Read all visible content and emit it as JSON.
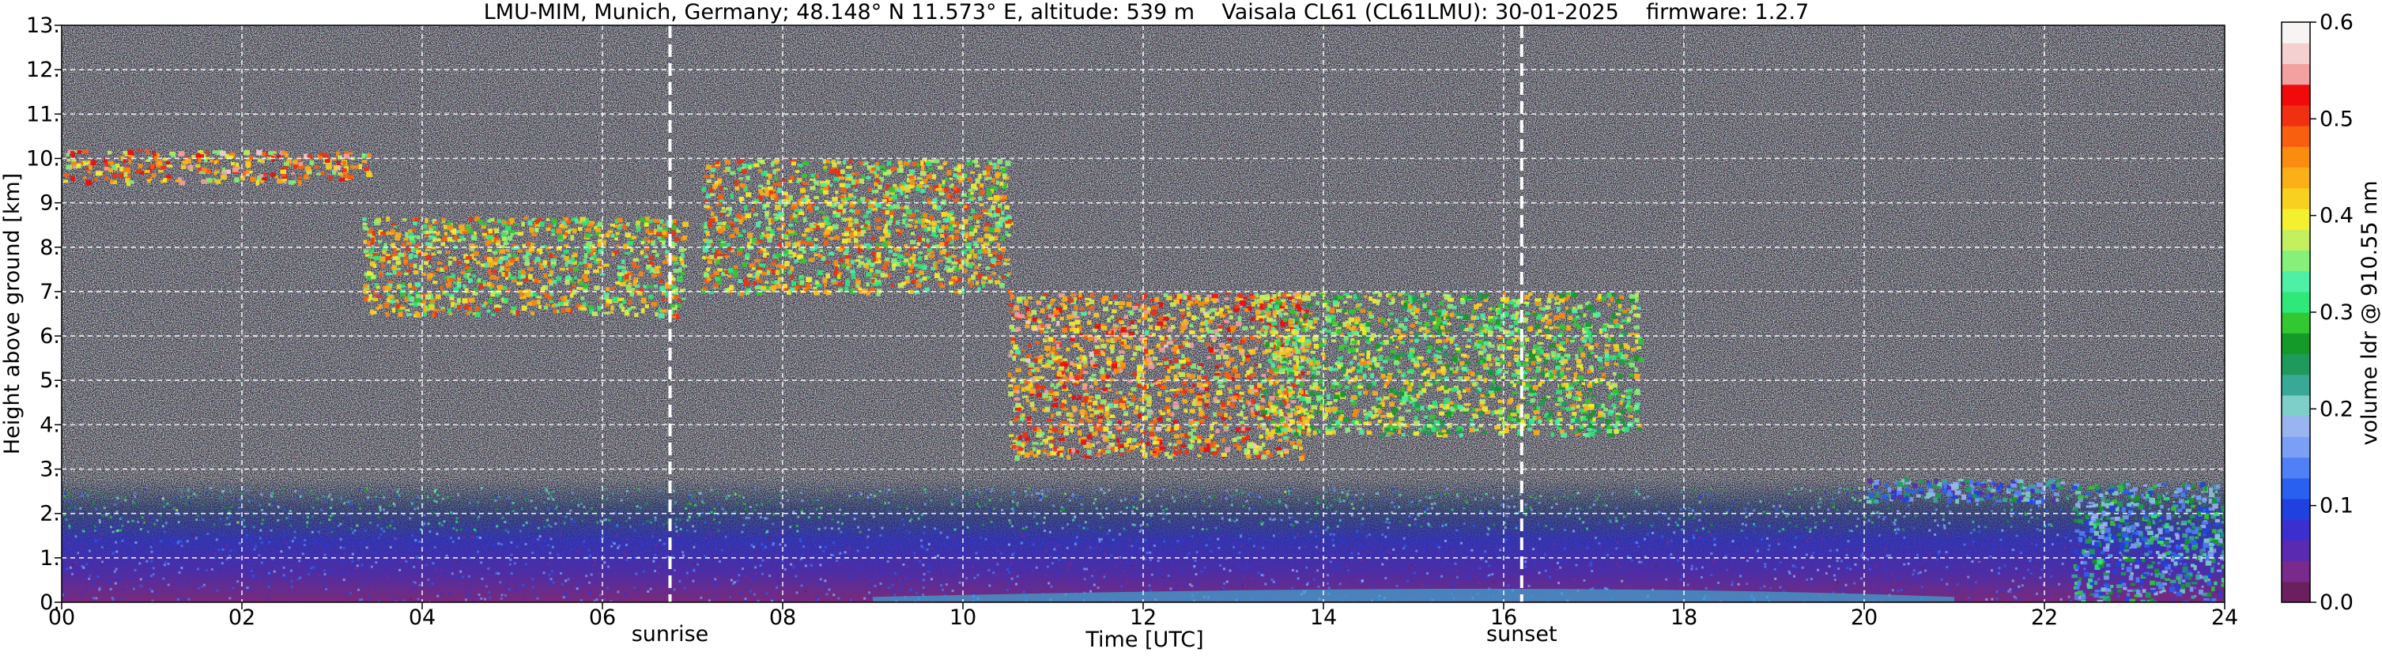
{
  "chart_data": {
    "type": "heatmap",
    "title": "LMU-MIM, Munich, Germany; 48.148° N 11.573° E, altitude: 539 m    Vaisala CL61 (CL61LMU): 30-01-2025    firmware: 1.2.7",
    "xlabel": "Time [UTC]",
    "ylabel": "Height above ground [km]",
    "colorbar_label": "volume ldr @ 910.55 nm",
    "xlim": [
      0,
      24
    ],
    "ylim": [
      0,
      13
    ],
    "x_ticks": [
      {
        "value": 0,
        "label": "00"
      },
      {
        "value": 2,
        "label": "02"
      },
      {
        "value": 4,
        "label": "04"
      },
      {
        "value": 6,
        "label": "06"
      },
      {
        "value": 8,
        "label": "08"
      },
      {
        "value": 10,
        "label": "10"
      },
      {
        "value": 12,
        "label": "12"
      },
      {
        "value": 14,
        "label": "14"
      },
      {
        "value": 16,
        "label": "16"
      },
      {
        "value": 18,
        "label": "18"
      },
      {
        "value": 20,
        "label": "20"
      },
      {
        "value": 22,
        "label": "22"
      },
      {
        "value": 24,
        "label": "24"
      }
    ],
    "y_ticks": [
      {
        "value": 0,
        "label": "0."
      },
      {
        "value": 1,
        "label": "1."
      },
      {
        "value": 2,
        "label": "2."
      },
      {
        "value": 3,
        "label": "3."
      },
      {
        "value": 4,
        "label": "4."
      },
      {
        "value": 5,
        "label": "5."
      },
      {
        "value": 6,
        "label": "6."
      },
      {
        "value": 7,
        "label": "7."
      },
      {
        "value": 8,
        "label": "8."
      },
      {
        "value": 9,
        "label": "9."
      },
      {
        "value": 10,
        "label": "10."
      },
      {
        "value": 11,
        "label": "11."
      },
      {
        "value": 12,
        "label": "12."
      },
      {
        "value": 13,
        "label": "13."
      }
    ],
    "markers": [
      {
        "label": "sunrise",
        "x": 6.75
      },
      {
        "label": "sunset",
        "x": 16.2
      }
    ],
    "colorbar": {
      "range": [
        0.0,
        0.6
      ],
      "ticks": [
        {
          "value": 0.0,
          "label": "0.0"
        },
        {
          "value": 0.1,
          "label": "0.1"
        },
        {
          "value": 0.2,
          "label": "0.2"
        },
        {
          "value": 0.3,
          "label": "0.3"
        },
        {
          "value": 0.4,
          "label": "0.4"
        },
        {
          "value": 0.5,
          "label": "0.5"
        },
        {
          "value": 0.6,
          "label": "0.6"
        }
      ],
      "colors": [
        "#6b1f5e",
        "#7a2a8c",
        "#5a2ab0",
        "#3b2fd0",
        "#2040e0",
        "#2a60f0",
        "#4f80f5",
        "#7a9ff5",
        "#9ab4f2",
        "#7ecfc8",
        "#3aa897",
        "#1e9a5a",
        "#139a28",
        "#32c832",
        "#2ee87a",
        "#4ef0a6",
        "#86f07a",
        "#c4f060",
        "#f4f030",
        "#f8d020",
        "#fcb018",
        "#fc8c10",
        "#f86010",
        "#f03010",
        "#f00a0a",
        "#f2a0a0",
        "#f4d0d0",
        "#f8f4f4"
      ],
      "grid": false
    },
    "grid": true,
    "features": [
      {
        "name": "cirrus",
        "x": [
          0.0,
          3.4
        ],
        "y": [
          9.5,
          10.2
        ],
        "ldr": 0.45
      },
      {
        "name": "ice cloud",
        "x": [
          3.3,
          6.9
        ],
        "y": [
          6.5,
          8.7
        ],
        "ldr": 0.4
      },
      {
        "name": "ice cloud",
        "x": [
          7.1,
          10.5
        ],
        "y": [
          7.0,
          10.0
        ],
        "ldr": 0.4
      },
      {
        "name": "ice cloud",
        "x": [
          10.5,
          13.8
        ],
        "y": [
          3.3,
          7.0
        ],
        "ldr": 0.45
      },
      {
        "name": "ice cloud",
        "x": [
          13.3,
          17.5
        ],
        "y": [
          3.8,
          7.0
        ],
        "ldr": 0.35
      },
      {
        "name": "boundary layer",
        "x": [
          0,
          24
        ],
        "y": [
          0,
          2.8
        ],
        "ldr": 0.08
      },
      {
        "name": "low cloud",
        "x": [
          20.0,
          22.2
        ],
        "y": [
          2.3,
          2.8
        ],
        "ldr": 0.15
      },
      {
        "name": "low cloud",
        "x": [
          22.3,
          24.0
        ],
        "y": [
          0.0,
          2.7
        ],
        "ldr": 0.2
      }
    ]
  }
}
